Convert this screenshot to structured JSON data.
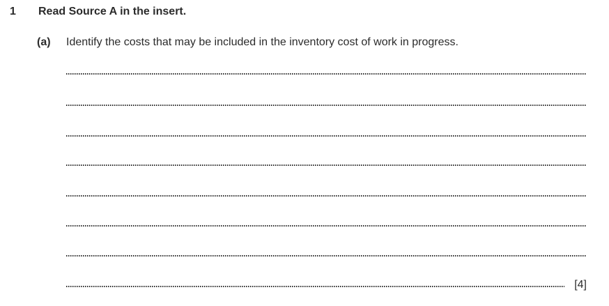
{
  "question": {
    "number": "1",
    "heading": "Read Source A in the insert.",
    "part": {
      "label": "(a)",
      "prompt": "Identify the costs that may be included in the inventory cost of work in progress."
    },
    "marks": "[4]",
    "answer_line_count": 8
  },
  "colors": {
    "text": "#2b2b2b",
    "background": "#ffffff"
  }
}
